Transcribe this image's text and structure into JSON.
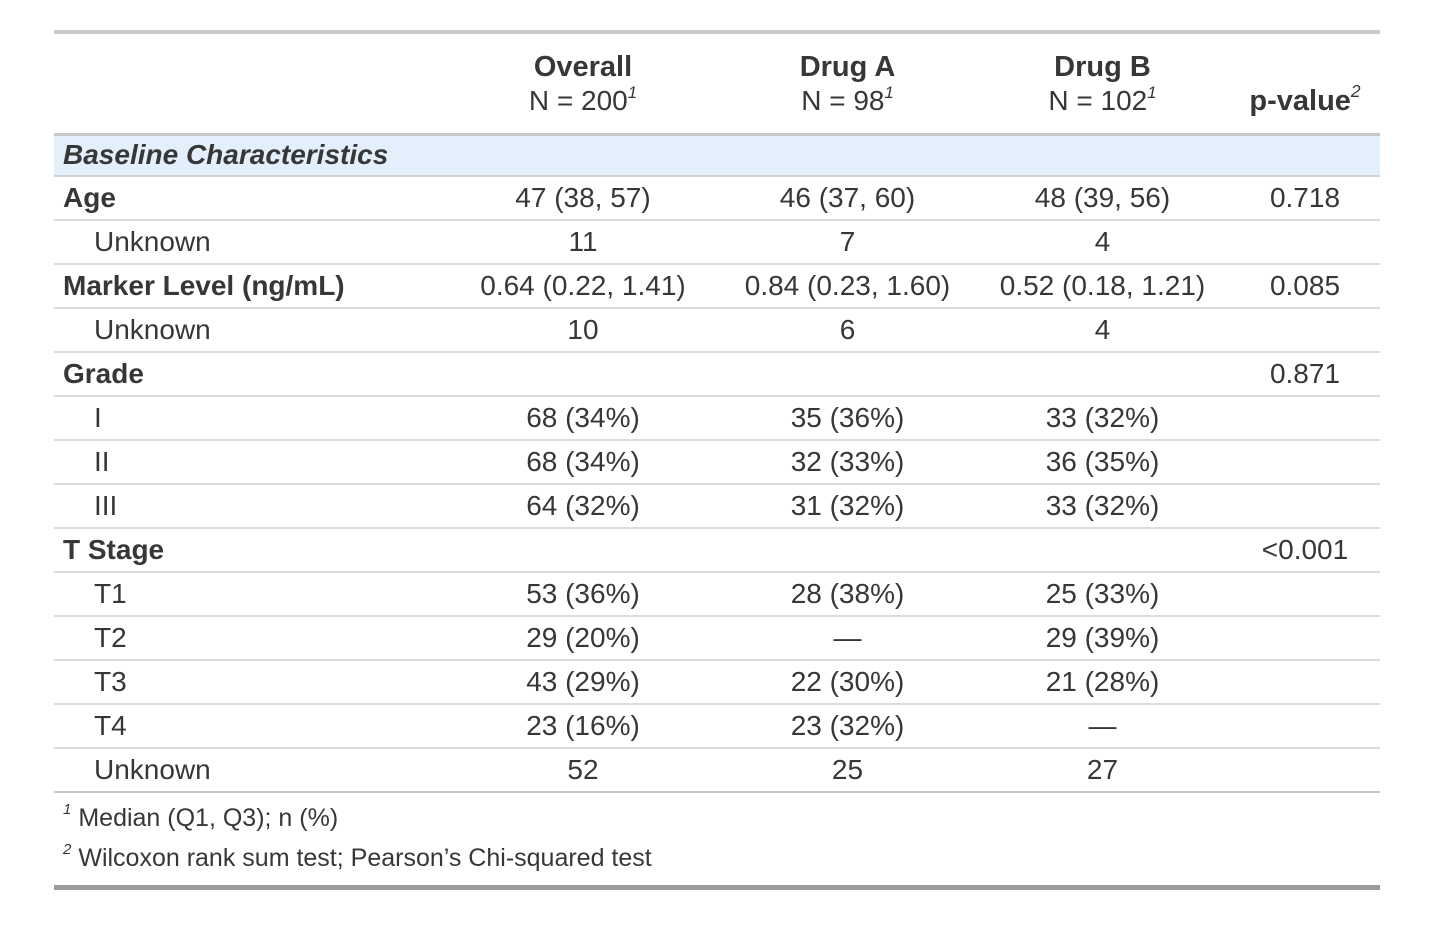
{
  "table": {
    "header": {
      "stub_label": "",
      "columns": [
        {
          "name": "Overall",
          "n_label": "N = 200",
          "footnote_mark": "1"
        },
        {
          "name": "Drug A",
          "n_label": "N = 98",
          "footnote_mark": "1"
        },
        {
          "name": "Drug B",
          "n_label": "N = 102",
          "footnote_mark": "1"
        }
      ],
      "p_value_column": {
        "name": "p-value",
        "footnote_mark": "2"
      }
    },
    "group_row": {
      "label": "Baseline Characteristics"
    },
    "rows": [
      {
        "label": "Age",
        "style": "variable",
        "values": [
          "47 (38, 57)",
          "46 (37, 60)",
          "48 (39, 56)"
        ],
        "p": "0.718"
      },
      {
        "label": "Unknown",
        "style": "level",
        "values": [
          "11",
          "7",
          "4"
        ],
        "p": ""
      },
      {
        "label": "Marker Level (ng/mL)",
        "style": "variable",
        "values": [
          "0.64 (0.22, 1.41)",
          "0.84 (0.23, 1.60)",
          "0.52 (0.18, 1.21)"
        ],
        "p": "0.085"
      },
      {
        "label": "Unknown",
        "style": "level",
        "values": [
          "10",
          "6",
          "4"
        ],
        "p": ""
      },
      {
        "label": "Grade",
        "style": "variable",
        "values": [
          "",
          "",
          ""
        ],
        "p": "0.871"
      },
      {
        "label": "I",
        "style": "level",
        "values": [
          "68 (34%)",
          "35 (36%)",
          "33 (32%)"
        ],
        "p": ""
      },
      {
        "label": "II",
        "style": "level",
        "values": [
          "68 (34%)",
          "32 (33%)",
          "36 (35%)"
        ],
        "p": ""
      },
      {
        "label": "III",
        "style": "level",
        "values": [
          "64 (32%)",
          "31 (32%)",
          "33 (32%)"
        ],
        "p": ""
      },
      {
        "label": "T Stage",
        "style": "variable",
        "values": [
          "",
          "",
          ""
        ],
        "p": "<0.001"
      },
      {
        "label": "T1",
        "style": "level",
        "values": [
          "53 (36%)",
          "28 (38%)",
          "25 (33%)"
        ],
        "p": ""
      },
      {
        "label": "T2",
        "style": "level",
        "values": [
          "29 (20%)",
          "—",
          "29 (39%)"
        ],
        "p": ""
      },
      {
        "label": "T3",
        "style": "level",
        "values": [
          "43 (29%)",
          "22 (30%)",
          "21 (28%)"
        ],
        "p": ""
      },
      {
        "label": "T4",
        "style": "level",
        "values": [
          "23 (16%)",
          "23 (32%)",
          "—"
        ],
        "p": ""
      },
      {
        "label": "Unknown",
        "style": "level",
        "values": [
          "52",
          "25",
          "27"
        ],
        "p": ""
      }
    ],
    "footnotes": [
      {
        "mark": "1",
        "text": "Median (Q1, Q3); n (%)"
      },
      {
        "mark": "2",
        "text": "Wilcoxon rank sum test; Pearson’s Chi-squared test"
      }
    ],
    "colors": {
      "text": "#373737",
      "group_row_bg": "#e3f0fb",
      "heavy_border": "#c9c9c9",
      "row_separator": "#dcdcdc",
      "bottom_border": "#9c9c9c"
    }
  }
}
